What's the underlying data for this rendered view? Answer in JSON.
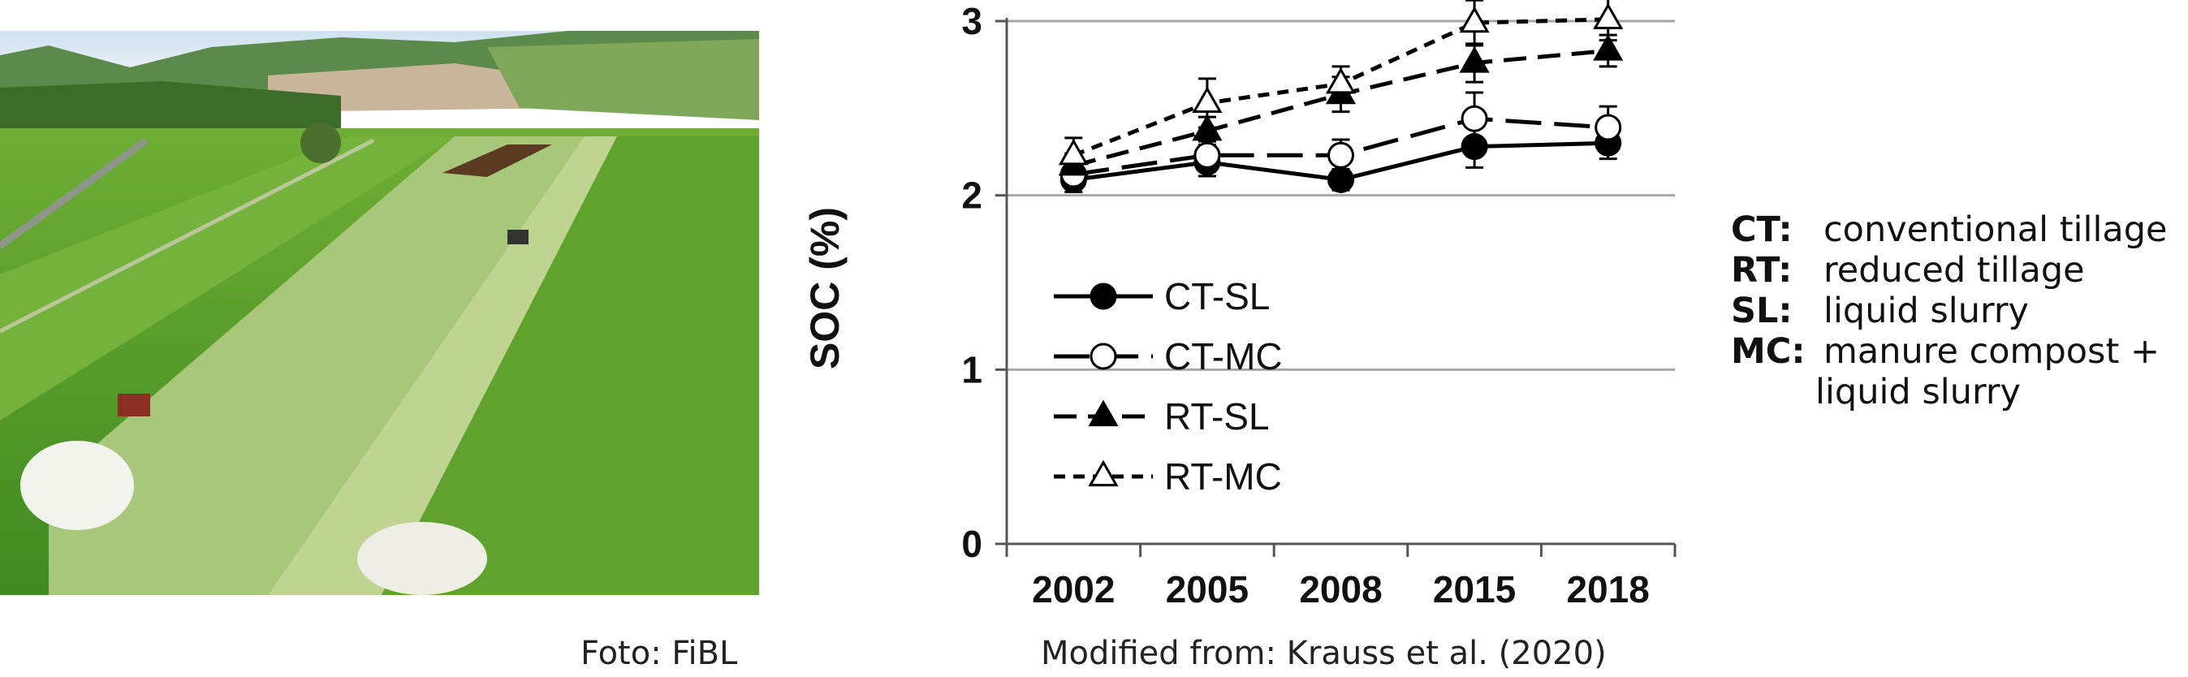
{
  "photo": {
    "credit": "Foto: FiBL"
  },
  "source_note": "Modified from: Krauss et al. (2020)",
  "chart_data": {
    "type": "line",
    "title": "",
    "xlabel": "",
    "ylabel": "SOC (%)",
    "categories": [
      "2002",
      "2005",
      "2008",
      "2015",
      "2018"
    ],
    "ylim": [
      0,
      3
    ],
    "yticks": [
      "0",
      "1",
      "2",
      "3"
    ],
    "grid": "horizontal",
    "legend_position": "inside-lower-left",
    "series": [
      {
        "name": "CT-SL",
        "values": [
          2.09,
          2.19,
          2.09,
          2.28,
          2.3
        ],
        "errors": [
          0.07,
          0.08,
          0.06,
          0.12,
          0.09
        ],
        "marker": "filled-circle",
        "line": "solid"
      },
      {
        "name": "CT-MC",
        "values": [
          2.12,
          2.23,
          2.23,
          2.44,
          2.39
        ],
        "errors": [
          0.07,
          0.08,
          0.09,
          0.15,
          0.12
        ],
        "marker": "open-circle",
        "line": "long-dash"
      },
      {
        "name": "RT-SL",
        "values": [
          2.17,
          2.37,
          2.58,
          2.76,
          2.83
        ],
        "errors": [
          0.07,
          0.08,
          0.1,
          0.11,
          0.09
        ],
        "marker": "filled-triangle",
        "line": "dash"
      },
      {
        "name": "RT-MC",
        "values": [
          2.23,
          2.53,
          2.64,
          2.99,
          3.01
        ],
        "errors": [
          0.1,
          0.14,
          0.1,
          0.13,
          0.12
        ],
        "marker": "open-triangle",
        "line": "short-dash"
      }
    ]
  },
  "glossary": [
    {
      "abbr": "CT:",
      "text": "conventional tillage"
    },
    {
      "abbr": "RT:",
      "text": "reduced tillage"
    },
    {
      "abbr": "SL:",
      "text": "liquid slurry"
    },
    {
      "abbr": "MC:",
      "text": "manure compost +",
      "continuation": "liquid slurry"
    }
  ],
  "colors": {
    "line": "#000000",
    "grid": "#a6a6a6",
    "field_light": "#8cc63f",
    "field_dark": "#3d7a25",
    "sky": "#dde8f2"
  }
}
